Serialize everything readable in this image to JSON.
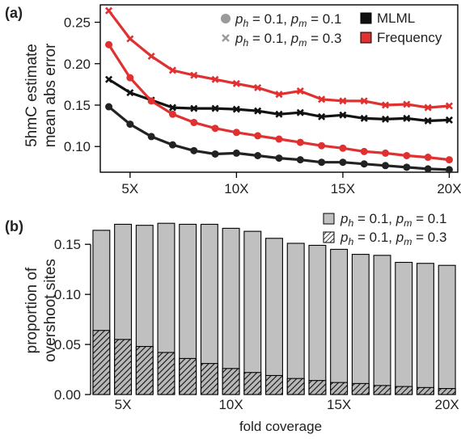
{
  "chart_data": [
    {
      "panel": "a",
      "type": "line",
      "ylabel": [
        "5hmC estimate",
        "mean abs error"
      ],
      "x": [
        4,
        5,
        6,
        7,
        8,
        9,
        10,
        11,
        12,
        13,
        14,
        15,
        16,
        17,
        18,
        19,
        20
      ],
      "x_tick_labels": [
        {
          "value": 5,
          "label": "5X"
        },
        {
          "value": 10,
          "label": "10X"
        },
        {
          "value": 15,
          "label": "15X"
        },
        {
          "value": 20,
          "label": "20X"
        }
      ],
      "y_ticks": [
        0.1,
        0.15,
        0.2,
        0.25
      ],
      "y_tick_labels": [
        "0.10",
        "0.15",
        "0.20",
        "0.25"
      ],
      "xlim": [
        3.6,
        20.4
      ],
      "ylim": [
        0.069,
        0.271
      ],
      "legend_placement": "top-right",
      "legend_params": [
        {
          "marker": "circle",
          "prefix": "p",
          "sub1": "h",
          "text1": " = 0.1, ",
          "prefix2": "p",
          "sub2": "m",
          "text2": " = 0.1"
        },
        {
          "marker": "cross",
          "prefix": "p",
          "sub1": "h",
          "text1": " = 0.1, ",
          "prefix2": "p",
          "sub2": "m",
          "text2": " = 0.3"
        }
      ],
      "legend_methods": [
        {
          "label": "MLML",
          "color": "#111111"
        },
        {
          "label": "Frequency",
          "color": "#e03030"
        }
      ],
      "series": [
        {
          "method": "MLML",
          "params": "p_h=0.1, p_m=0.1",
          "marker": "circle",
          "color": "#222222",
          "values": [
            0.148,
            0.127,
            0.112,
            0.102,
            0.095,
            0.091,
            0.092,
            0.089,
            0.086,
            0.084,
            0.081,
            0.081,
            0.079,
            0.077,
            0.075,
            0.073,
            0.072
          ]
        },
        {
          "method": "MLML",
          "params": "p_h=0.1, p_m=0.3",
          "marker": "cross",
          "color": "#111111",
          "values": [
            0.181,
            0.165,
            0.156,
            0.147,
            0.146,
            0.146,
            0.145,
            0.143,
            0.139,
            0.141,
            0.136,
            0.138,
            0.134,
            0.133,
            0.134,
            0.131,
            0.132
          ]
        },
        {
          "method": "Frequency",
          "params": "p_h=0.1, p_m=0.1",
          "marker": "circle",
          "color": "#e03030",
          "values": [
            0.223,
            0.183,
            0.155,
            0.139,
            0.129,
            0.122,
            0.117,
            0.113,
            0.109,
            0.105,
            0.101,
            0.098,
            0.094,
            0.092,
            0.089,
            0.087,
            0.084
          ]
        },
        {
          "method": "Frequency",
          "params": "p_h=0.1, p_m=0.3",
          "marker": "cross",
          "color": "#e03030",
          "values": [
            0.264,
            0.23,
            0.209,
            0.192,
            0.186,
            0.181,
            0.176,
            0.171,
            0.163,
            0.167,
            0.157,
            0.155,
            0.155,
            0.15,
            0.151,
            0.147,
            0.149
          ]
        }
      ]
    },
    {
      "panel": "b",
      "type": "bar",
      "ylabel": [
        "proportion of",
        "overshoot sites"
      ],
      "xlabel": "fold coverage",
      "x": [
        4,
        5,
        6,
        7,
        8,
        9,
        10,
        11,
        12,
        13,
        14,
        15,
        16,
        17,
        18,
        19,
        20
      ],
      "x_tick_labels": [
        {
          "value": 5,
          "label": "5X"
        },
        {
          "value": 10,
          "label": "10X"
        },
        {
          "value": 15,
          "label": "15X"
        },
        {
          "value": 20,
          "label": "20X"
        }
      ],
      "y_ticks": [
        0.0,
        0.05,
        0.1,
        0.15
      ],
      "y_tick_labels": [
        "0.00",
        "0.05",
        "0.10",
        "0.15"
      ],
      "xlim": [
        3.5,
        20.5
      ],
      "ylim": [
        0,
        0.176
      ],
      "legend_placement": "top-right",
      "series": [
        {
          "name_parts": {
            "prefix": "p",
            "sub1": "h",
            "text1": " = 0.1, ",
            "prefix2": "p",
            "sub2": "m",
            "text2": " = 0.1"
          },
          "fill": "#c0c0c0",
          "values": [
            0.164,
            0.17,
            0.169,
            0.171,
            0.17,
            0.17,
            0.166,
            0.163,
            0.156,
            0.151,
            0.149,
            0.145,
            0.14,
            0.139,
            0.132,
            0.131,
            0.129
          ]
        },
        {
          "name_parts": {
            "prefix": "p",
            "sub1": "h",
            "text1": " = 0.1, ",
            "prefix2": "p",
            "sub2": "m",
            "text2": " = 0.3"
          },
          "fill": "hatch",
          "values": [
            0.064,
            0.055,
            0.048,
            0.042,
            0.036,
            0.031,
            0.026,
            0.022,
            0.019,
            0.016,
            0.014,
            0.012,
            0.011,
            0.009,
            0.008,
            0.007,
            0.006
          ]
        }
      ]
    }
  ],
  "panel_labels": {
    "a": "(a)",
    "b": "(b)"
  }
}
